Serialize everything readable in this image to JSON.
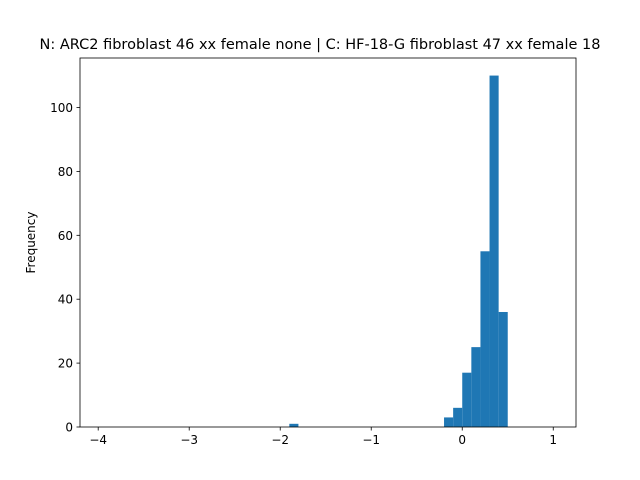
{
  "chart_data": {
    "type": "bar",
    "title": "N: ARC2 fibroblast 46 xx female none | C: HF-18-G fibroblast 47 xx female 18",
    "xlabel": "",
    "ylabel": "Frequency",
    "xlim": [
      -4.2,
      1.25
    ],
    "ylim": [
      0,
      115.5
    ],
    "x_ticks": [
      -4,
      -3,
      -2,
      -1,
      0,
      1
    ],
    "x_tick_labels": [
      "−4",
      "−3",
      "−2",
      "−1",
      "0",
      "1"
    ],
    "y_ticks": [
      0,
      20,
      40,
      60,
      80,
      100
    ],
    "y_tick_labels": [
      "0",
      "20",
      "40",
      "60",
      "80",
      "100"
    ],
    "bar_color": "#1f77b4",
    "bins": [
      {
        "x0": -1.9,
        "x1": -1.8,
        "count": 1
      },
      {
        "x0": -0.2,
        "x1": -0.1,
        "count": 3
      },
      {
        "x0": -0.1,
        "x1": 0.0,
        "count": 6
      },
      {
        "x0": 0.0,
        "x1": 0.1,
        "count": 17
      },
      {
        "x0": 0.1,
        "x1": 0.2,
        "count": 25
      },
      {
        "x0": 0.2,
        "x1": 0.3,
        "count": 55
      },
      {
        "x0": 0.3,
        "x1": 0.4,
        "count": 110
      },
      {
        "x0": 0.4,
        "x1": 0.5,
        "count": 36
      }
    ],
    "grid": false,
    "legend": "none"
  }
}
